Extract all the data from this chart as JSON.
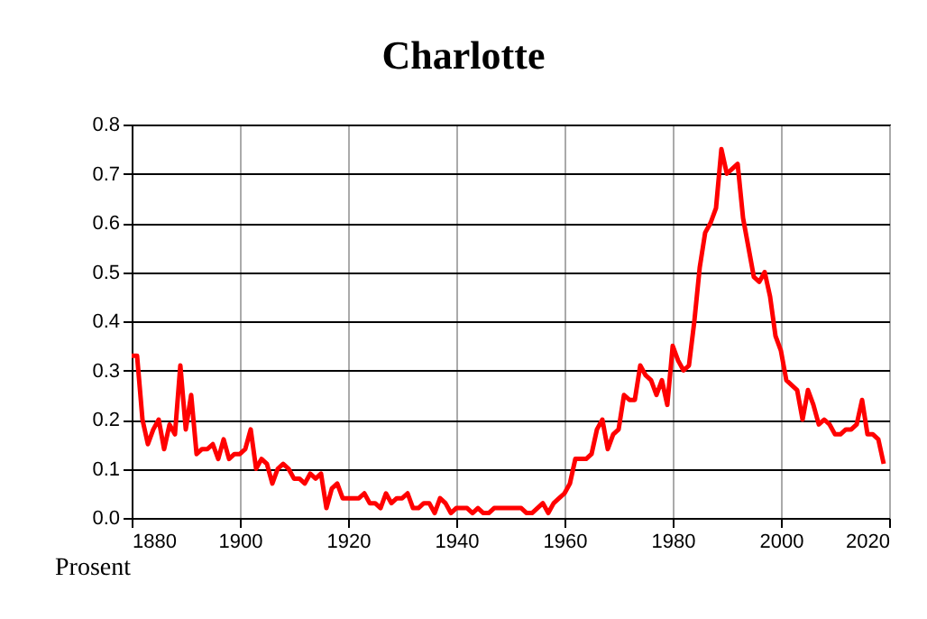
{
  "chart_data": {
    "type": "line",
    "title": "Charlotte",
    "ylabel": "Prosent",
    "x": [
      1880,
      1881,
      1882,
      1883,
      1884,
      1885,
      1886,
      1887,
      1888,
      1889,
      1890,
      1891,
      1892,
      1893,
      1894,
      1895,
      1896,
      1897,
      1898,
      1899,
      1900,
      1901,
      1902,
      1903,
      1904,
      1905,
      1906,
      1907,
      1908,
      1909,
      1910,
      1911,
      1912,
      1913,
      1914,
      1915,
      1916,
      1917,
      1918,
      1919,
      1920,
      1921,
      1922,
      1923,
      1924,
      1925,
      1926,
      1927,
      1928,
      1929,
      1930,
      1931,
      1932,
      1933,
      1934,
      1935,
      1936,
      1937,
      1938,
      1939,
      1940,
      1941,
      1942,
      1943,
      1944,
      1945,
      1946,
      1947,
      1948,
      1949,
      1950,
      1951,
      1952,
      1953,
      1954,
      1955,
      1956,
      1957,
      1958,
      1959,
      1960,
      1961,
      1962,
      1963,
      1964,
      1965,
      1966,
      1967,
      1968,
      1969,
      1970,
      1971,
      1972,
      1973,
      1974,
      1975,
      1976,
      1977,
      1978,
      1979,
      1980,
      1981,
      1982,
      1983,
      1984,
      1985,
      1986,
      1987,
      1988,
      1989,
      1990,
      1991,
      1992,
      1993,
      1994,
      1995,
      1996,
      1997,
      1998,
      1999,
      2000,
      2001,
      2002,
      2003,
      2004,
      2005,
      2006,
      2007,
      2008,
      2009,
      2010,
      2011,
      2012,
      2013,
      2014,
      2015,
      2016,
      2017,
      2018,
      2019
    ],
    "series": [
      {
        "color": "#ff0000",
        "values": [
          0.33,
          0.33,
          0.2,
          0.15,
          0.18,
          0.2,
          0.14,
          0.19,
          0.17,
          0.31,
          0.18,
          0.25,
          0.13,
          0.14,
          0.14,
          0.15,
          0.12,
          0.16,
          0.12,
          0.13,
          0.13,
          0.14,
          0.18,
          0.1,
          0.12,
          0.11,
          0.07,
          0.1,
          0.11,
          0.1,
          0.08,
          0.08,
          0.07,
          0.09,
          0.08,
          0.09,
          0.02,
          0.06,
          0.07,
          0.04,
          0.04,
          0.04,
          0.04,
          0.05,
          0.03,
          0.03,
          0.02,
          0.05,
          0.03,
          0.04,
          0.04,
          0.05,
          0.02,
          0.02,
          0.03,
          0.03,
          0.01,
          0.04,
          0.03,
          0.01,
          0.02,
          0.02,
          0.02,
          0.01,
          0.02,
          0.01,
          0.01,
          0.02,
          0.02,
          0.02,
          0.02,
          0.02,
          0.02,
          0.01,
          0.01,
          0.02,
          0.03,
          0.01,
          0.03,
          0.04,
          0.05,
          0.07,
          0.12,
          0.12,
          0.12,
          0.13,
          0.18,
          0.2,
          0.14,
          0.17,
          0.18,
          0.25,
          0.24,
          0.24,
          0.31,
          0.29,
          0.28,
          0.25,
          0.28,
          0.23,
          0.35,
          0.32,
          0.3,
          0.31,
          0.4,
          0.51,
          0.58,
          0.6,
          0.63,
          0.75,
          0.7,
          0.71,
          0.72,
          0.61,
          0.55,
          0.49,
          0.48,
          0.5,
          0.45,
          0.37,
          0.34,
          0.28,
          0.27,
          0.26,
          0.2,
          0.26,
          0.23,
          0.19,
          0.2,
          0.19,
          0.17,
          0.17,
          0.18,
          0.18,
          0.19,
          0.24,
          0.17,
          0.17,
          0.16,
          0.11
        ]
      }
    ],
    "xlim": [
      1880,
      2020
    ],
    "xticks": [
      1880,
      1900,
      1920,
      1940,
      1960,
      1980,
      2000,
      2020
    ],
    "ylim": [
      0,
      0.8
    ],
    "yticks": [
      {
        "value": 0,
        "label": "0.0"
      },
      {
        "value": 0.1,
        "label": "0.1"
      },
      {
        "value": 0.2,
        "label": "0.2"
      },
      {
        "value": 0.3,
        "label": "0.3"
      },
      {
        "value": 0.4,
        "label": "0.4"
      },
      {
        "value": 0.5,
        "label": "0.5"
      },
      {
        "value": 0.6,
        "label": "0.6"
      },
      {
        "value": 0.7,
        "label": "0.7"
      },
      {
        "value": 0.8,
        "label": "0.8"
      }
    ],
    "grid": true,
    "line_style": "solid"
  }
}
